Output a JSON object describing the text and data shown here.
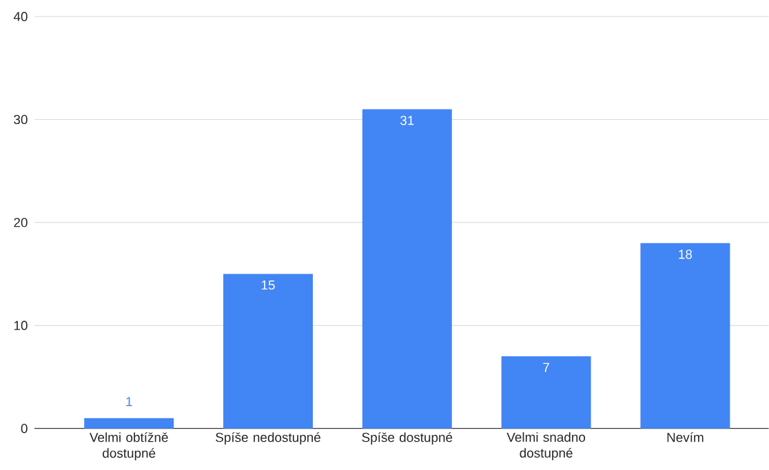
{
  "chart_data": {
    "type": "bar",
    "categories": [
      "Velmi obtížně dostupné",
      "Spíše nedostupné",
      "Spíše dostupné",
      "Velmi snadno dostupné",
      "Nevím"
    ],
    "values": [
      1,
      15,
      31,
      7,
      18
    ],
    "color": "#4285f4",
    "ylim": [
      0,
      40
    ],
    "yticks": [
      0,
      10,
      20,
      30,
      40
    ],
    "grid": "y",
    "data_labels": true
  }
}
